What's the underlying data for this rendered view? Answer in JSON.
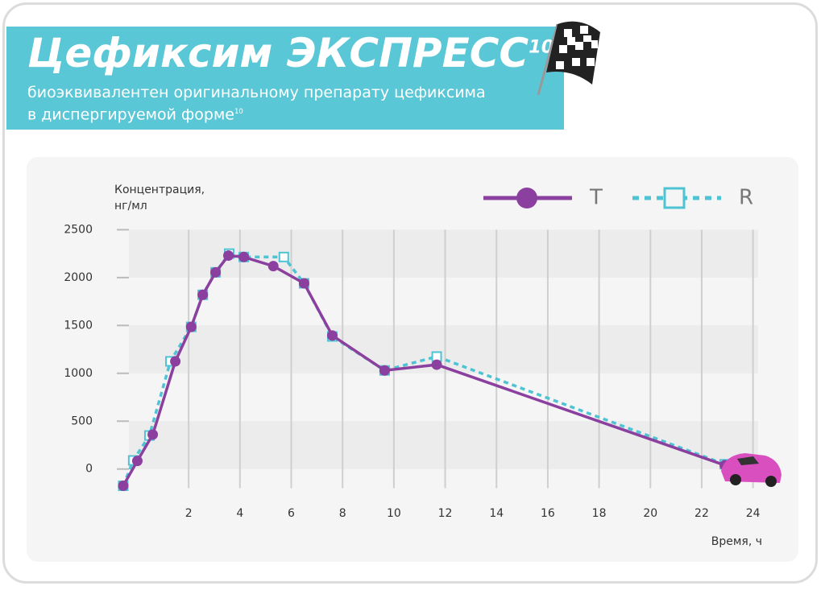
{
  "header": {
    "title": "Цефиксим ЭКСПРЕСС",
    "title_sup": "10",
    "subtitle_line1": "биоэквивалентен оригинальному препарату цефиксима",
    "subtitle_line2": "в диспергируемой форме",
    "subtitle_sup": "10"
  },
  "chart_data": {
    "type": "line",
    "y_label_line1": "Концентрация,",
    "y_label_line2": "нг/мл",
    "x_label": "Время, ч",
    "xlim": [
      -0.8,
      24.2
    ],
    "xticks": [
      2,
      4,
      6,
      8,
      10,
      12,
      14,
      16,
      18,
      20,
      22,
      24
    ],
    "ylim": [
      -200,
      2500
    ],
    "yticks": [
      0,
      500,
      1000,
      1500,
      2000,
      2500
    ],
    "grid": true,
    "legend": "top-right",
    "series": [
      {
        "name": "T",
        "color": "#8b3f9e",
        "style": "solid",
        "x": [
          -0.55,
          0,
          0.6,
          1.48,
          2.1,
          2.55,
          3.05,
          3.55,
          4.15,
          5.3,
          6.5,
          7.6,
          9.64,
          11.67,
          22.9
        ],
        "values": [
          -175,
          85,
          360,
          1125,
          1485,
          1820,
          2055,
          2230,
          2215,
          2120,
          1940,
          1395,
          1030,
          1090,
          40
        ]
      },
      {
        "name": "R",
        "color": "#4ec3d4",
        "style": "dashed",
        "x": [
          -0.55,
          -0.16,
          0.47,
          1.29,
          2.1,
          2.55,
          3.05,
          3.58,
          4.15,
          5.71,
          6.5,
          7.6,
          9.64,
          11.67,
          22.9
        ],
        "values": [
          -175,
          90,
          350,
          1125,
          1485,
          1820,
          2055,
          2250,
          2215,
          2215,
          1940,
          1385,
          1030,
          1175,
          50
        ]
      }
    ]
  }
}
